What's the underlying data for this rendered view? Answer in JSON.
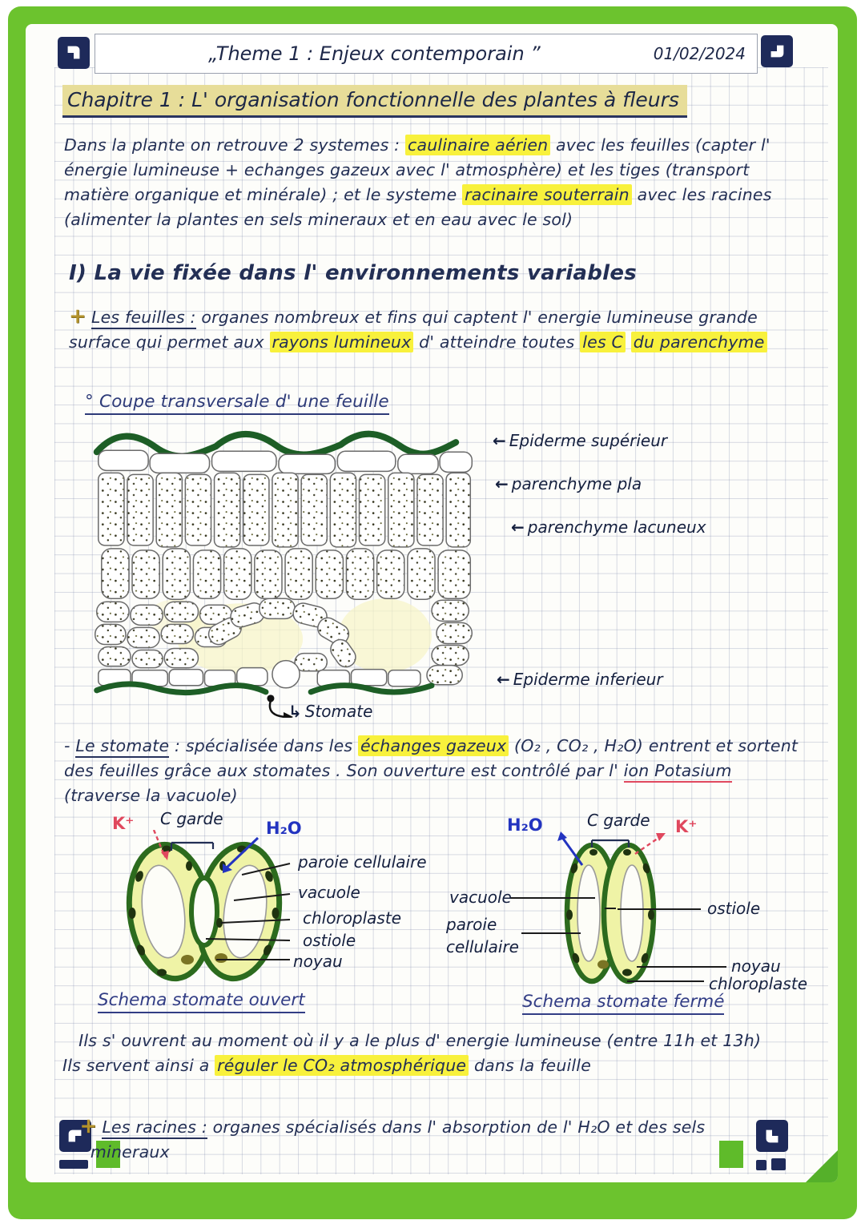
{
  "colors": {
    "frame_green": "#6cc32e",
    "ink": "#232f55",
    "highlight_yellow": "#f8f13c",
    "chapter_khaki": "#e7dd99",
    "marker_navy": "#1e2a5a",
    "diagram_green": "#2c6b1e",
    "stomata_fill": "#eff3a6",
    "red_ink": "#e0485e",
    "blue_ink": "#2334c0"
  },
  "header": {
    "title": "„Theme 1 : Enjeux contemporain ”",
    "date": "01/02/2024"
  },
  "chapter": {
    "title": "Chapitre 1 :  L' organisation  fonctionnelle  des  plantes  à  fleurs"
  },
  "intro": {
    "segments": [
      {
        "t": "      Dans la plante on retrouve 2 systemes : "
      },
      {
        "t": "caulinaire aérien",
        "c": "hl"
      },
      {
        "t": " avec les feuilles (capter l' énergie lumineuse + echanges gazeux avec l' atmosphère) et les tiges (transport matière organique et minérale) ; et le systeme "
      },
      {
        "t": "racinaire souterrain",
        "c": "hl"
      },
      {
        "t": " avec les racines (alimenter la plantes en sels mineraux et en eau avec le sol)"
      }
    ]
  },
  "section1": {
    "heading": "I) La vie fixée dans l' environnements variables"
  },
  "feuilles": {
    "bullet": "+",
    "segments": [
      {
        "t": "Les feuilles :",
        "c": "u"
      },
      {
        "t": " organes nombreux et fins qui captent l' energie lumineuse grande surface qui permet aux "
      },
      {
        "t": "rayons lumineux",
        "c": "hl"
      },
      {
        "t": " d' atteindre toutes "
      },
      {
        "t": "les C",
        "c": "hl"
      },
      {
        "t": " "
      },
      {
        "t": "du parenchyme",
        "c": "hl"
      }
    ]
  },
  "leaf_figure": {
    "title": "° Coupe transversale d' une feuille",
    "arrow_left": "←",
    "arrow_curved": "↳",
    "labels": {
      "epiderme_sup": "Epiderme supérieur",
      "parenchyme_pla": "parenchyme pla",
      "parenchyme_lacuneux": "parenchyme lacuneux",
      "epiderme_inf": "Epiderme inferieur",
      "stomate": "Stomate"
    }
  },
  "stomate_paragraph": {
    "segments": [
      {
        "t": "- "
      },
      {
        "t": "Le stomate",
        "c": "u"
      },
      {
        "t": " : spécialisée dans les "
      },
      {
        "t": "échanges gazeux",
        "c": "hl"
      },
      {
        "t": " (O₂ , CO₂ , H₂O) entrent et sortent des feuilles grâce aux stomates . Son ouverture est contrôlé par l' "
      },
      {
        "t": "ion Potasium",
        "c": "ured"
      },
      {
        "t": " (traverse la vacuole)"
      }
    ]
  },
  "stomata": {
    "open": {
      "k": "K⁺",
      "garde": "C garde",
      "h2o": "H₂O",
      "labels": [
        "paroie cellulaire",
        "vacuole",
        "chloroplaste",
        "ostiole",
        "noyau"
      ],
      "caption": "Schema stomate ouvert"
    },
    "closed": {
      "h2o": "H₂O",
      "garde": "C garde",
      "k": "K⁺",
      "left_labels": [
        "vacuole",
        "paroie",
        "cellulaire"
      ],
      "right_labels": [
        "ostiole",
        "noyau",
        "chloroplaste"
      ],
      "caption": "Schema stomate fermé"
    }
  },
  "conclusion": {
    "segments": [
      {
        "t": "   Ils s' ouvrent au moment où il y a le plus d' energie lumineuse (entre 11h et 13h)\nIls servent ainsi a "
      },
      {
        "t": "réguler le CO₂ atmosphérique",
        "c": "hl"
      },
      {
        "t": " dans la feuille"
      }
    ]
  },
  "racines": {
    "bullet": "+",
    "segments": [
      {
        "t": "Les racines :",
        "c": "u"
      },
      {
        "t": " organes spécialisés dans l' absorption de l' H₂O et des sels\n    mineraux"
      }
    ]
  }
}
